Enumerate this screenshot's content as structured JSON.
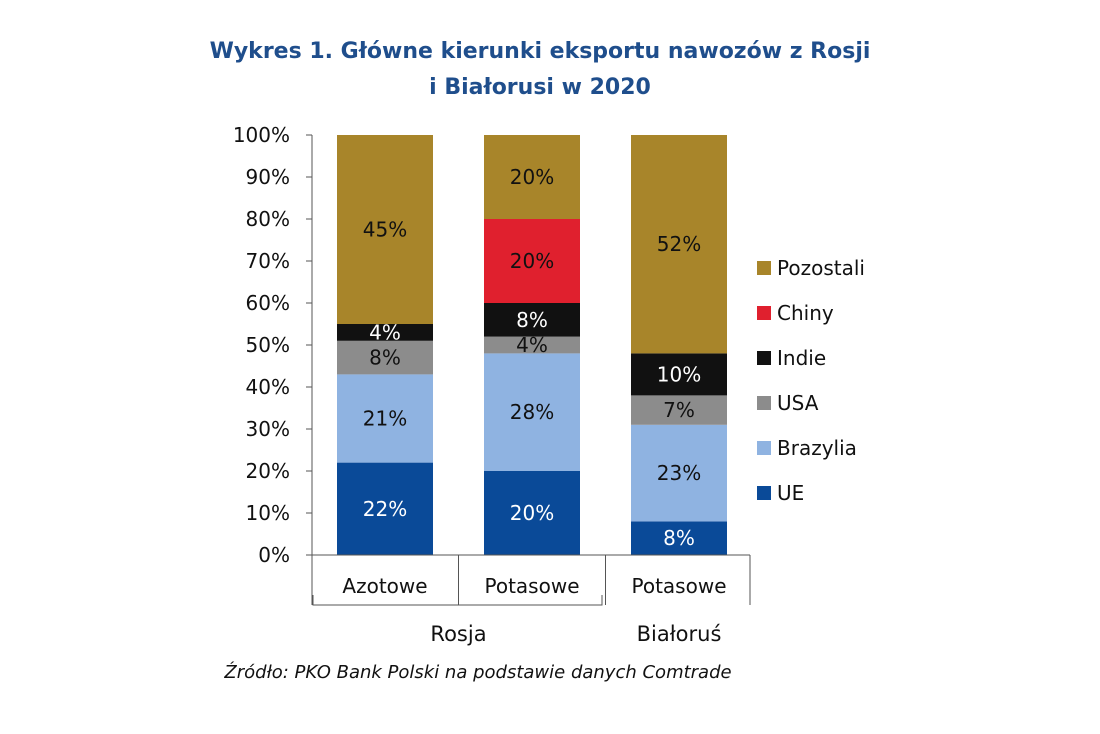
{
  "chart_data": {
    "type": "bar",
    "stacked": true,
    "percent_axis": true,
    "title": "Wykres 1. Główne kierunki eksportu nawozów z Rosji i Białorusi w 2020",
    "title_lines": [
      "Wykres 1. Główne kierunki eksportu nawozów z Rosji",
      "i Białorusi w 2020"
    ],
    "categories": [
      "Azotowe",
      "Potasowe",
      "Potasowe"
    ],
    "groups": [
      {
        "label": "Rosja",
        "categories": [
          0,
          1
        ]
      },
      {
        "label": "Białoruś",
        "categories": [
          2
        ]
      }
    ],
    "y_ticks": [
      "0%",
      "10%",
      "20%",
      "30%",
      "40%",
      "50%",
      "60%",
      "70%",
      "80%",
      "90%",
      "100%"
    ],
    "ylim": [
      0,
      100
    ],
    "series": [
      {
        "name": "UE",
        "color": "#0a4a98",
        "label_color": "#ffffff",
        "values": [
          22,
          20,
          8
        ],
        "labels": [
          "22%",
          "20%",
          "8%"
        ]
      },
      {
        "name": "Brazylia",
        "color": "#8fb3e1",
        "label_color": "#111111",
        "values": [
          21,
          28,
          23
        ],
        "labels": [
          "21%",
          "28%",
          "23%"
        ]
      },
      {
        "name": "USA",
        "color": "#8c8c8c",
        "label_color": "#111111",
        "values": [
          8,
          4,
          7
        ],
        "labels": [
          "8%",
          "4%",
          "7%"
        ]
      },
      {
        "name": "Indie",
        "color": "#111111",
        "label_color": "#ffffff",
        "values": [
          4,
          8,
          10
        ],
        "labels": [
          "4%",
          "8%",
          "10%"
        ]
      },
      {
        "name": "Chiny",
        "color": "#e0202e",
        "label_color": "#111111",
        "values": [
          0,
          20,
          0
        ],
        "labels": [
          "",
          "20%",
          ""
        ]
      },
      {
        "name": "Pozostali",
        "color": "#a8852a",
        "label_color": "#111111",
        "values": [
          45,
          20,
          52
        ],
        "labels": [
          "45%",
          "20%",
          "52%"
        ]
      }
    ],
    "legend_order": [
      "Pozostali",
      "Chiny",
      "Indie",
      "USA",
      "Brazylia",
      "UE"
    ],
    "legend_position": "right",
    "grid": false,
    "source": "Źródło: PKO Bank Polski na podstawie danych Comtrade"
  }
}
